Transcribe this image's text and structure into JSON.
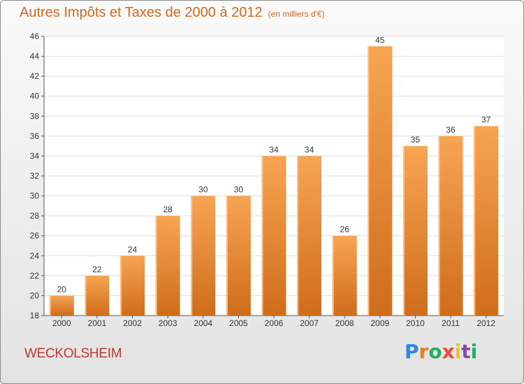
{
  "title": "Autres Impôts et Taxes de 2000 à 2012",
  "title_unit": "(en milliers d'€)",
  "city": "WECKOLSHEIM",
  "logo": {
    "text": "Proxiti",
    "letters": [
      "P",
      "r",
      "o",
      "x",
      "i",
      "t",
      "i"
    ],
    "colors": [
      "#2e86de",
      "#e67e22",
      "#27ae60",
      "#e74c3c",
      "#f1c40f",
      "#8e44ad",
      "#27ae60"
    ]
  },
  "colors": {
    "bar": "#f0923a",
    "title": "#d2691e",
    "city": "#c0392b"
  },
  "chart_data": {
    "type": "bar",
    "categories": [
      "2000",
      "2001",
      "2002",
      "2003",
      "2004",
      "2005",
      "2006",
      "2007",
      "2008",
      "2009",
      "2010",
      "2011",
      "2012"
    ],
    "values": [
      20,
      22,
      24,
      28,
      30,
      30,
      34,
      34,
      26,
      45,
      35,
      36,
      37
    ],
    "ylim": [
      18,
      46
    ],
    "yticks": [
      18,
      20,
      22,
      24,
      26,
      28,
      30,
      32,
      34,
      36,
      38,
      40,
      42,
      44,
      46
    ],
    "grid": "horizontal",
    "legend": "none"
  }
}
